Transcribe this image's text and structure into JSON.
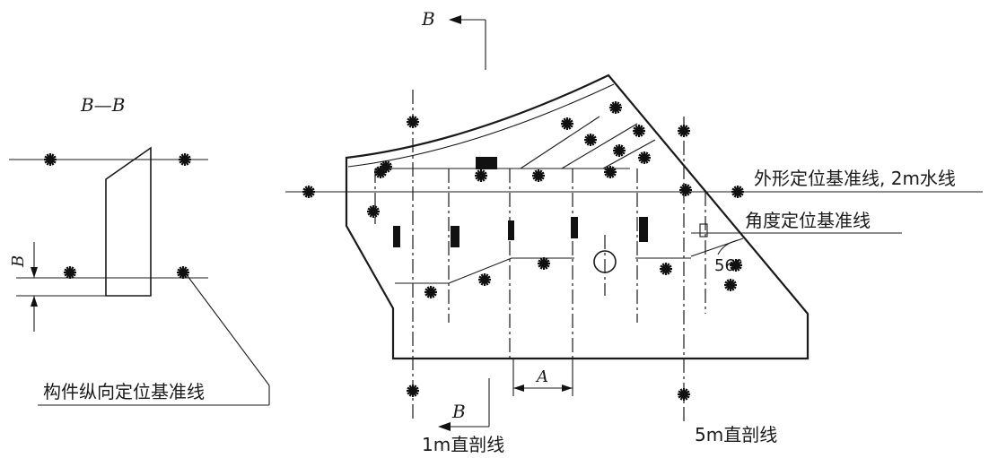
{
  "section_title": "B—B",
  "section_letter_top": "B",
  "section_letter_bottom": "B",
  "dim_b": "B",
  "dim_a": "A",
  "angle_label": "56°",
  "labels": {
    "outline_baseline": "外形定位基准线, 2m水线",
    "angle_baseline": "角度定位基准线",
    "longitudinal_baseline": "构件纵向定位基准线",
    "section_1m": "1m直剖线",
    "section_5m": "5m直剖线"
  }
}
